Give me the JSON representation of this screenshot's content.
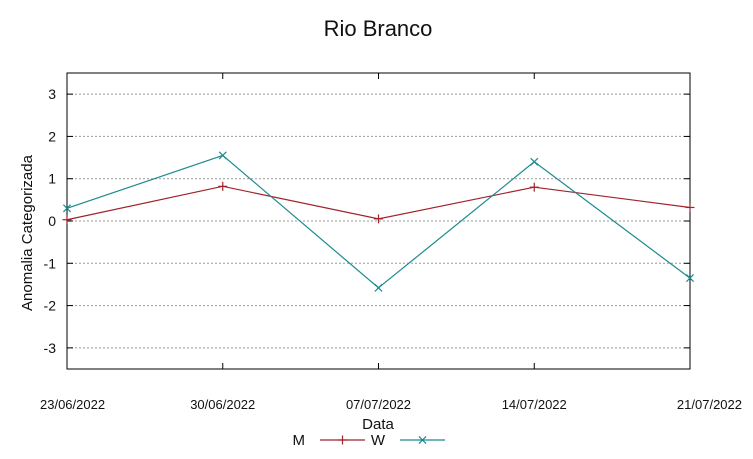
{
  "chart_data": {
    "type": "line",
    "title": "Rio Branco",
    "xlabel": "Data",
    "ylabel": "Anomalia Categorizada",
    "x": [
      "23/06/2022",
      "30/06/2022",
      "07/07/2022",
      "14/07/2022",
      "21/07/2022"
    ],
    "y_ticks": [
      "3",
      "2",
      "1",
      "0",
      "-1",
      "-2",
      "-3"
    ],
    "ylim": [
      -3.5,
      3.5
    ],
    "grid": true,
    "legend_position": "bottom",
    "series": [
      {
        "name": "M",
        "color": "#a0222a",
        "marker": "plus",
        "values": [
          0.03,
          0.82,
          0.05,
          0.8,
          0.32
        ]
      },
      {
        "name": "W",
        "color": "#1a8a8f",
        "marker": "cross",
        "values": [
          0.3,
          1.55,
          -1.58,
          1.4,
          -1.35
        ]
      }
    ]
  }
}
